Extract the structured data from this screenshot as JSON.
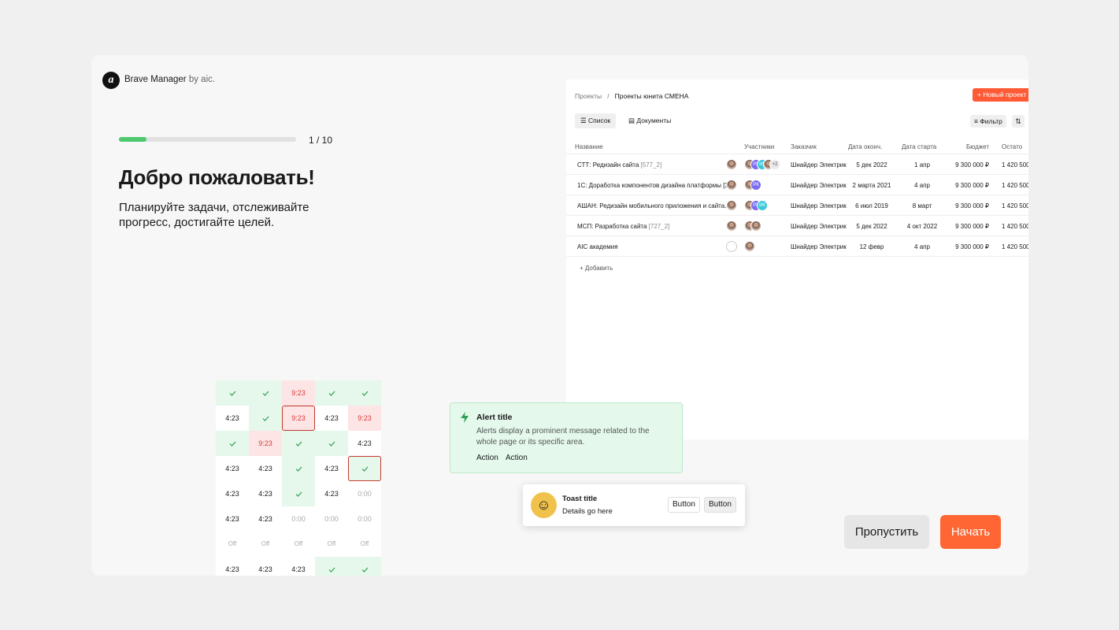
{
  "brand": {
    "name": "Brave Manager",
    "suffix": "by aic."
  },
  "onboarding": {
    "step_label": "1 / 10",
    "title": "Добро пожаловать!",
    "subtitle": "Планируйте задачи, отслеживайте прогресс, достигайте целей.",
    "skip": "Пропустить",
    "start": "Начать"
  },
  "preview": {
    "breadcrumb": [
      "Проекты",
      "/",
      "Проекты юнита СМЕНА"
    ],
    "new_project": "+ Новый проект",
    "tabs": [
      "Список",
      "Документы"
    ],
    "filter": "Фильтр",
    "table": {
      "columns": [
        "Название",
        "Участники",
        "Заказчик",
        "Дата оконч.",
        "Дата старта",
        "Бюджет",
        "Остато"
      ],
      "rows": [
        {
          "name": "СТТ: Редизайн сайта",
          "tag": "[577_2]",
          "owner": "photo",
          "participants": [
            {
              "photo": true
            },
            {
              "initials": "РК",
              "color": "#7b6cf0"
            },
            {
              "initials": "ИК",
              "color": "#3cc7d9"
            },
            {
              "photo": true
            },
            {
              "initials": "+2",
              "color": "#e9e9e9"
            }
          ],
          "customer": "Шнайдер Электрик",
          "end": "5 дек 2022",
          "start": "1 апр",
          "budget": "9 300 000 ₽",
          "rest": "1 420 500"
        },
        {
          "name": "1С: Доработка компонентов дизайна платформы [3...",
          "owner": "photo",
          "participants": [
            {
              "photo": true
            },
            {
              "initials": "РК",
              "color": "#7b6cf0"
            }
          ],
          "customer": "Шнайдер Электрик",
          "end": "2 марта 2021",
          "start": "4 апр",
          "budget": "9 300 000 ₽",
          "rest": "1 420 500"
        },
        {
          "name": "АШАН: Редизайн мобильного приложения и сайта...",
          "owner": "photo",
          "participants": [
            {
              "photo": true
            },
            {
              "initials": "РК",
              "color": "#7b6cf0"
            },
            {
              "initials": "ИК",
              "color": "#3cc7d9"
            }
          ],
          "customer": "Шнайдер Электрик",
          "end": "6 июл 2019",
          "start": "8 март",
          "budget": "9 300 000 ₽",
          "rest": "1 420 500"
        },
        {
          "name": "МСП: Разработка сайта",
          "tag": "[727_2]",
          "owner": "photo",
          "participants": [
            {
              "photo": true
            },
            {
              "photo": true
            }
          ],
          "customer": "Шнайдер Электрик",
          "end": "5 дек 2022",
          "start": "4 окт 2022",
          "budget": "9 300 000 ₽",
          "rest": "1 420 500"
        },
        {
          "name": "AIC академия",
          "owner": "empty",
          "participants": [
            {
              "photo": true
            }
          ],
          "customer": "Шнайдер Электрик",
          "end": "12 февр",
          "start": "4 апр",
          "budget": "9 300 000 ₽",
          "rest": "1 420 500"
        }
      ],
      "add": "+ Добавить"
    }
  },
  "schedule": [
    [
      {
        "kind": "check"
      },
      {
        "kind": "check"
      },
      {
        "text": "9:23",
        "kind": "late"
      },
      {
        "kind": "check"
      },
      {
        "kind": "check"
      }
    ],
    [
      {
        "text": "4:23",
        "kind": "plain"
      },
      {
        "kind": "check"
      },
      {
        "text": "9:23",
        "kind": "late",
        "outlined": true
      },
      {
        "text": "4:23",
        "kind": "plain"
      },
      {
        "text": "9:23",
        "kind": "late"
      }
    ],
    [
      {
        "kind": "check"
      },
      {
        "text": "9:23",
        "kind": "late"
      },
      {
        "kind": "check"
      },
      {
        "kind": "check"
      },
      {
        "text": "4:23",
        "kind": "plain"
      }
    ],
    [
      {
        "text": "4:23",
        "kind": "plain"
      },
      {
        "text": "4:23",
        "kind": "plain"
      },
      {
        "kind": "check"
      },
      {
        "text": "4:23",
        "kind": "plain"
      },
      {
        "kind": "check",
        "outlined": true
      }
    ],
    [
      {
        "text": "4:23",
        "kind": "plain"
      },
      {
        "text": "4:23",
        "kind": "plain"
      },
      {
        "kind": "check"
      },
      {
        "text": "4:23",
        "kind": "plain"
      },
      {
        "text": "0:00",
        "kind": "muted"
      }
    ],
    [
      {
        "text": "4:23",
        "kind": "plain"
      },
      {
        "text": "4:23",
        "kind": "plain"
      },
      {
        "text": "0:00",
        "kind": "muted"
      },
      {
        "text": "0:00",
        "kind": "muted"
      },
      {
        "text": "0:00",
        "kind": "muted"
      }
    ],
    [
      {
        "text": "Off",
        "kind": "off"
      },
      {
        "text": "Off",
        "kind": "off"
      },
      {
        "text": "Off",
        "kind": "off"
      },
      {
        "text": "Off",
        "kind": "off"
      },
      {
        "text": "Off",
        "kind": "off"
      }
    ],
    [
      {
        "text": "4:23",
        "kind": "plain"
      },
      {
        "text": "4:23",
        "kind": "plain"
      },
      {
        "text": "4:23",
        "kind": "plain"
      },
      {
        "kind": "check"
      },
      {
        "kind": "check"
      }
    ]
  ],
  "alert": {
    "title": "Alert title",
    "body": "Alerts display a prominent message related to the whole page or its specific area.",
    "actions": [
      "Action",
      "Action"
    ]
  },
  "toast": {
    "title": "Toast title",
    "details": "Details go here",
    "buttons": [
      "Button",
      "Button"
    ]
  }
}
